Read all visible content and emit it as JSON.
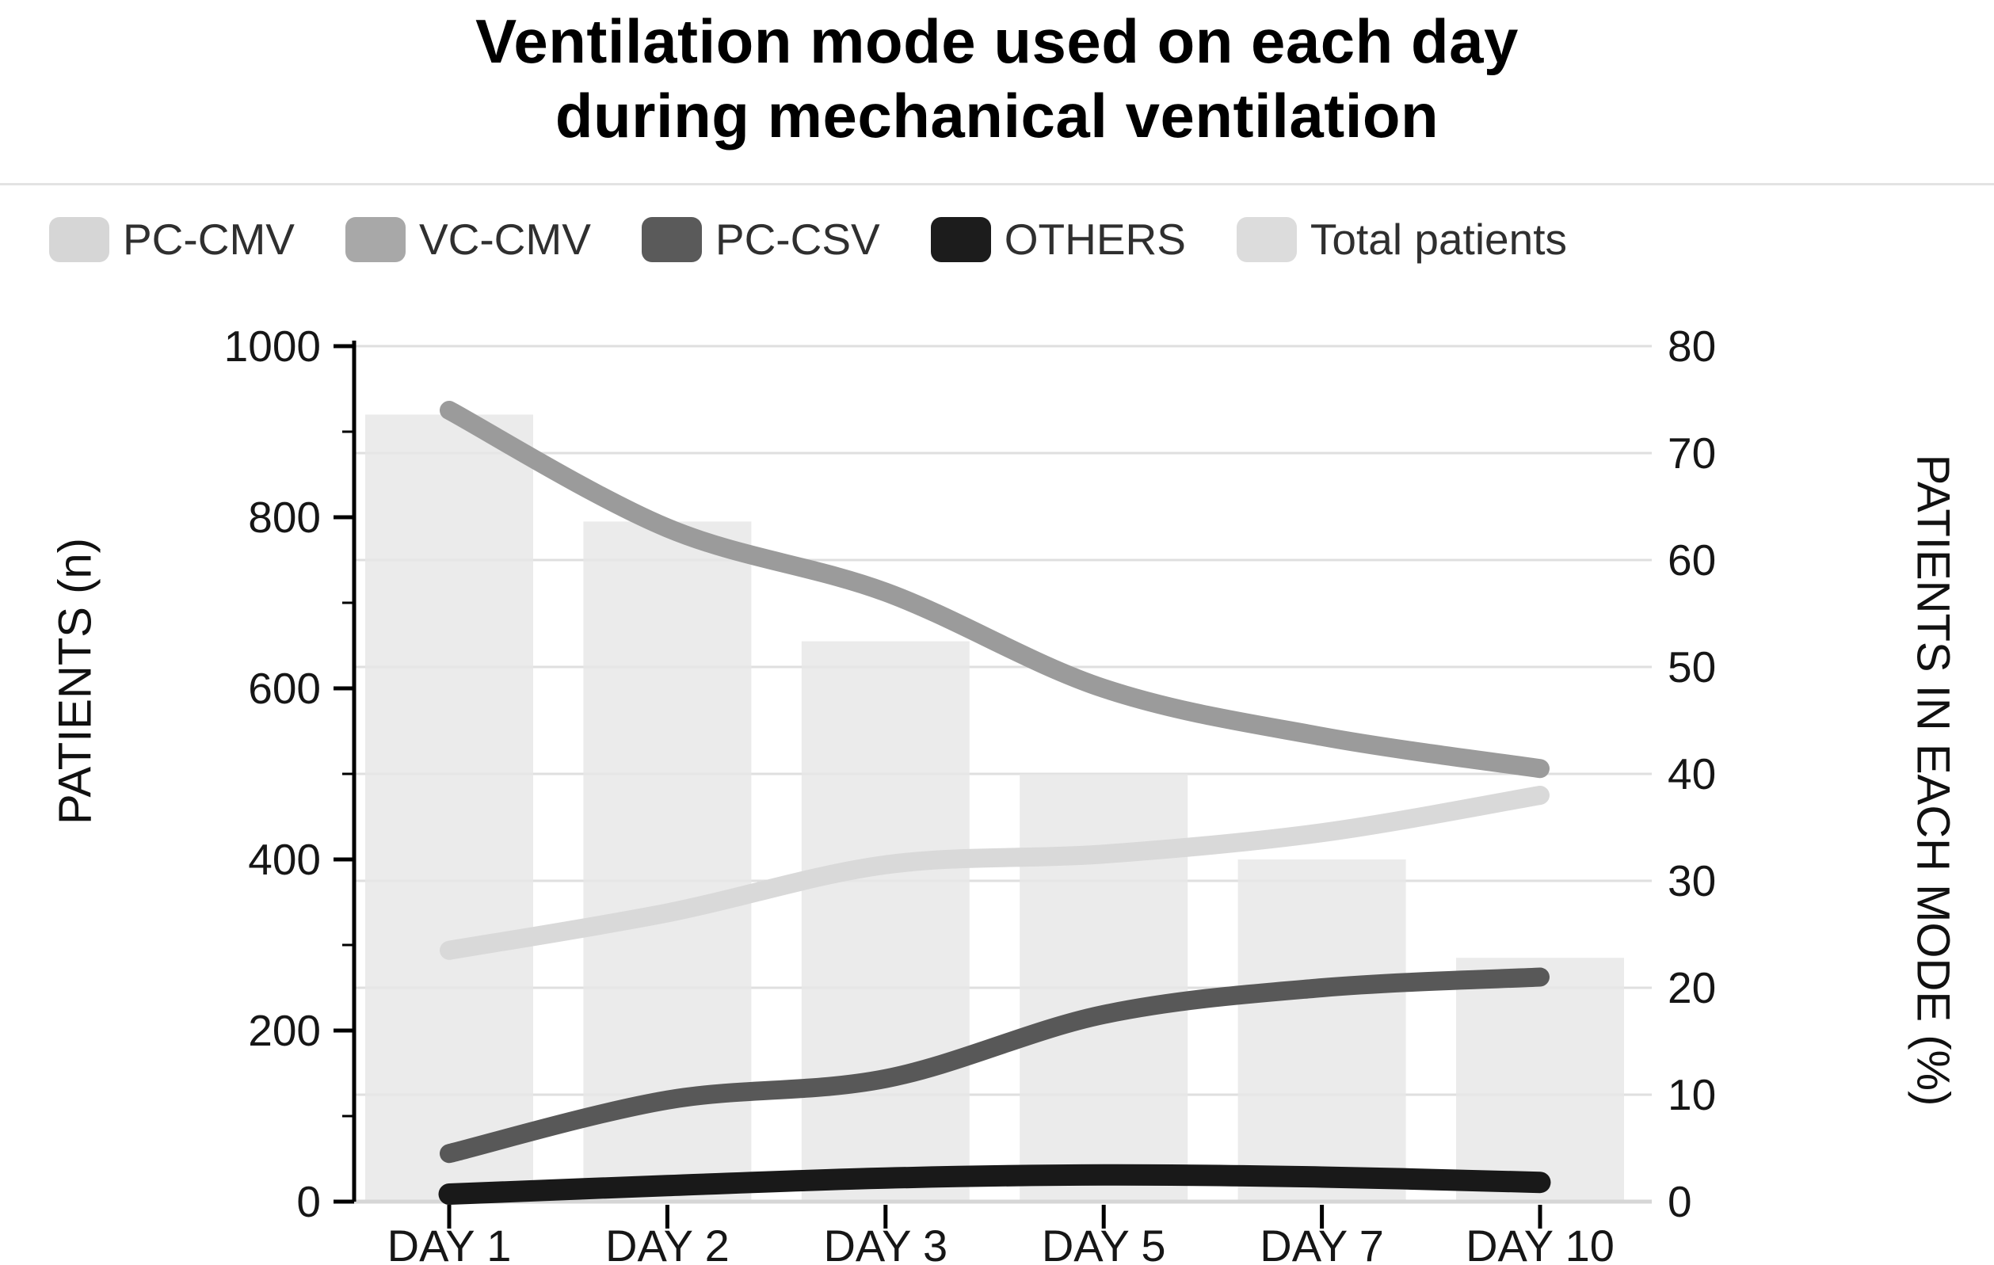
{
  "title": {
    "line1": "Ventilation mode used on each day",
    "line2": "during mechanical ventilation"
  },
  "legend": [
    {
      "label": "PC-CMV",
      "color": "#d6d6d6"
    },
    {
      "label": "VC-CMV",
      "color": "#a8a8a8"
    },
    {
      "label": "PC-CSV",
      "color": "#5a5a5a"
    },
    {
      "label": "OTHERS",
      "color": "#1c1c1c"
    },
    {
      "label": "Total patients",
      "color": "#dcdcdc"
    }
  ],
  "chart_data": {
    "type": "bar+line",
    "title": "Ventilation mode used on each day during mechanical ventilation",
    "categories": [
      "DAY 1",
      "DAY 2",
      "DAY 3",
      "DAY 5",
      "DAY 7",
      "DAY 10"
    ],
    "bar_series": {
      "name": "Total patients",
      "axis": "left",
      "color": "#e8e7e7",
      "values": [
        920,
        795,
        655,
        500,
        400,
        285
      ]
    },
    "line_series": [
      {
        "name": "PC-CMV",
        "axis": "right",
        "color": "#d9d9d9",
        "width": 24,
        "values": [
          23.5,
          27,
          31.5,
          32.5,
          34.5,
          38
        ]
      },
      {
        "name": "VC-CMV",
        "axis": "right",
        "color": "#9b9b9b",
        "width": 24,
        "values": [
          74,
          63,
          57,
          48,
          43.5,
          40.5
        ]
      },
      {
        "name": "PC-CSV",
        "axis": "right",
        "color": "#585858",
        "width": 24,
        "values": [
          4.5,
          9.5,
          11.5,
          17.5,
          20,
          21
        ]
      },
      {
        "name": "OTHERS",
        "axis": "right",
        "color": "#191919",
        "width": 27,
        "values": [
          0.7,
          1.5,
          2.2,
          2.5,
          2.3,
          1.8
        ]
      }
    ],
    "left_axis": {
      "label": "PATIENTS (n)",
      "min": 0,
      "max": 1000,
      "major_ticks": [
        0,
        200,
        400,
        600,
        800,
        1000
      ],
      "minor_ticks": [
        100,
        300,
        500,
        700,
        900
      ]
    },
    "right_axis": {
      "label": "PATIENTS IN EACH MODE (%)",
      "min": 0,
      "max": 80,
      "ticks": [
        0,
        10,
        20,
        30,
        40,
        50,
        60,
        70,
        80
      ]
    },
    "grid": {
      "horizontal_step_right_axis": 10,
      "on": true
    },
    "legend_position": "top"
  }
}
